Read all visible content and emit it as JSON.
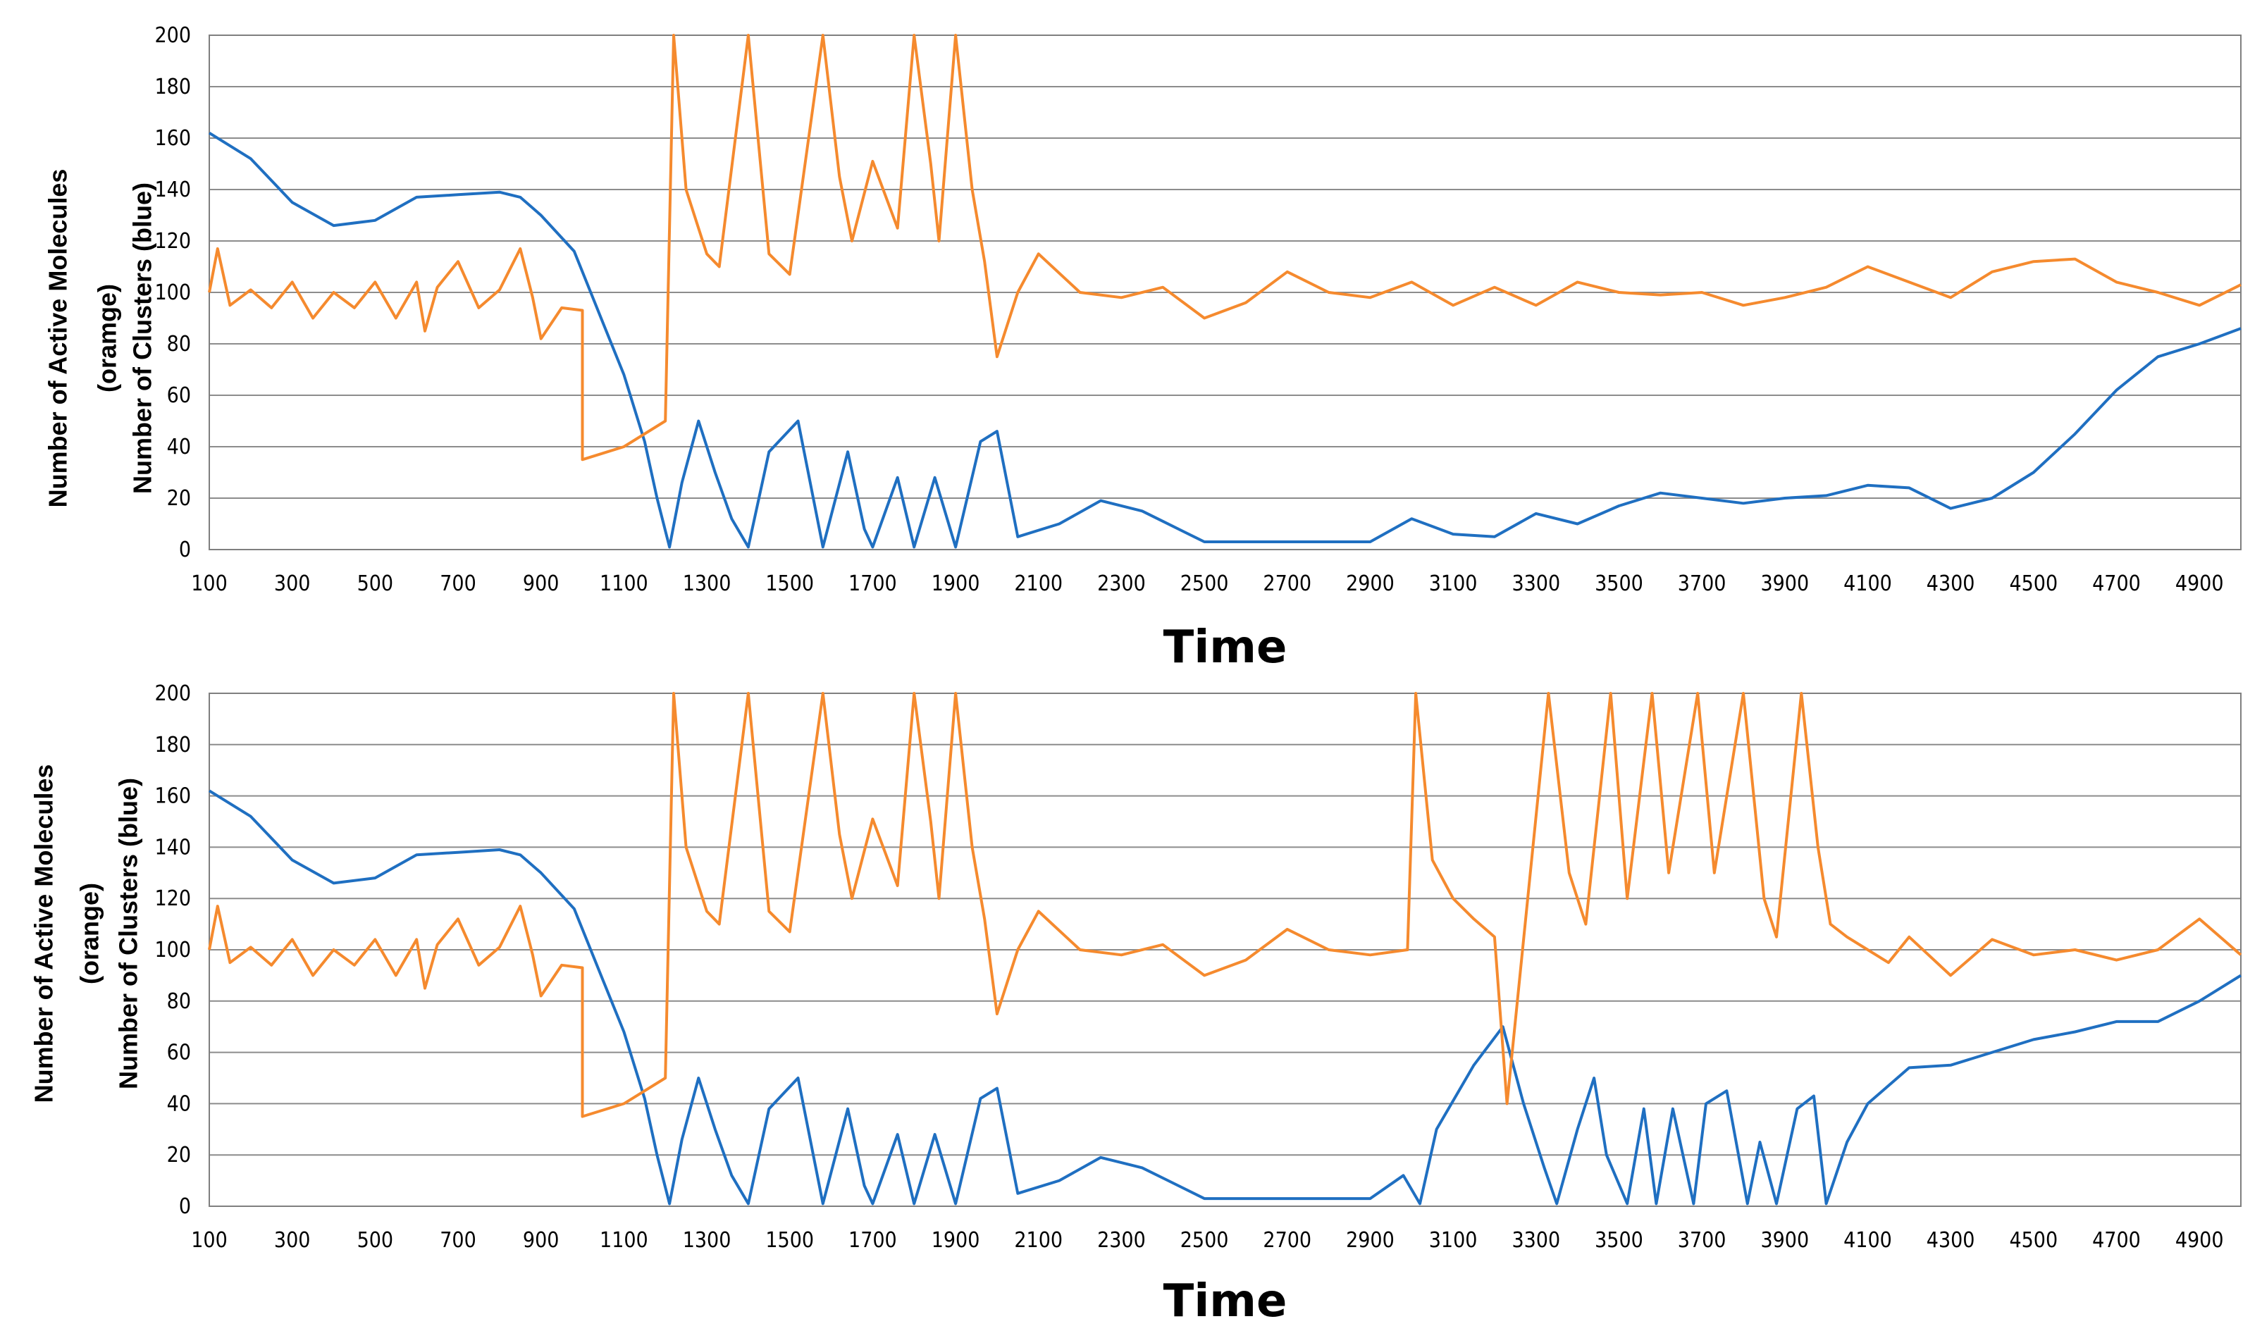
{
  "chart_data": [
    {
      "type": "line",
      "xlabel": "Time",
      "ylabel_lines": [
        "Number of Active Molecules",
        "(oramge)",
        "Number of Clusters (blue)"
      ],
      "xlim": [
        100,
        5000
      ],
      "ylim": [
        0,
        200
      ],
      "yticks": [
        0,
        20,
        40,
        60,
        80,
        100,
        120,
        140,
        160,
        180,
        200
      ],
      "xticks": [
        100,
        300,
        500,
        700,
        900,
        1100,
        1300,
        1500,
        1700,
        1900,
        2100,
        2300,
        2500,
        2700,
        2900,
        3100,
        3300,
        3500,
        3700,
        3900,
        4100,
        4300,
        4500,
        4700,
        4900
      ],
      "grid": true,
      "series": [
        {
          "name": "Number of Clusters",
          "color": "#1F6FC1",
          "x": [
            100,
            200,
            300,
            400,
            500,
            600,
            700,
            800,
            850,
            900,
            980,
            1050,
            1100,
            1150,
            1180,
            1210,
            1240,
            1280,
            1320,
            1360,
            1400,
            1450,
            1520,
            1580,
            1640,
            1680,
            1700,
            1760,
            1800,
            1850,
            1900,
            1960,
            2000,
            2050,
            2150,
            2250,
            2350,
            2450,
            2500,
            2700,
            2900,
            3000,
            3100,
            3200,
            3300,
            3400,
            3500,
            3600,
            3700,
            3800,
            3900,
            4000,
            4100,
            4200,
            4300,
            4400,
            4500,
            4600,
            4700,
            4800,
            4900,
            5000
          ],
          "values": [
            162,
            152,
            135,
            126,
            128,
            137,
            138,
            139,
            137,
            130,
            116,
            88,
            68,
            42,
            20,
            1,
            26,
            50,
            30,
            12,
            1,
            38,
            50,
            1,
            38,
            8,
            1,
            28,
            1,
            28,
            1,
            42,
            46,
            5,
            10,
            19,
            15,
            7,
            3,
            3,
            3,
            12,
            6,
            5,
            14,
            10,
            17,
            22,
            20,
            18,
            20,
            21,
            25,
            24,
            16,
            20,
            30,
            45,
            62,
            75,
            80,
            86
          ]
        },
        {
          "name": "Number of Active Molecules",
          "color": "#F58A2E",
          "x": [
            100,
            120,
            150,
            200,
            250,
            300,
            350,
            400,
            450,
            500,
            550,
            600,
            620,
            650,
            700,
            750,
            800,
            850,
            880,
            900,
            950,
            1000,
            1000,
            1100,
            1200,
            1220,
            1250,
            1300,
            1330,
            1400,
            1450,
            1500,
            1580,
            1620,
            1650,
            1700,
            1760,
            1800,
            1840,
            1860,
            1900,
            1940,
            1970,
            2000,
            2050,
            2100,
            2200,
            2300,
            2400,
            2500,
            2600,
            2700,
            2800,
            2900,
            3000,
            3100,
            3200,
            3300,
            3400,
            3500,
            3600,
            3700,
            3800,
            3900,
            4000,
            4100,
            4200,
            4300,
            4400,
            4500,
            4600,
            4700,
            4800,
            4900,
            5000
          ],
          "values": [
            100,
            117,
            95,
            101,
            94,
            104,
            90,
            100,
            94,
            104,
            90,
            104,
            85,
            102,
            112,
            94,
            101,
            117,
            98,
            82,
            94,
            93,
            35,
            40,
            50,
            200,
            140,
            115,
            110,
            200,
            115,
            107,
            200,
            145,
            120,
            151,
            125,
            200,
            150,
            120,
            200,
            140,
            112,
            75,
            100,
            115,
            100,
            98,
            102,
            90,
            96,
            108,
            100,
            98,
            104,
            95,
            102,
            95,
            104,
            100,
            99,
            100,
            95,
            98,
            102,
            110,
            104,
            98,
            108,
            112,
            113,
            104,
            100,
            95,
            103
          ]
        }
      ]
    },
    {
      "type": "line",
      "xlabel": "Time",
      "ylabel_lines": [
        "Number of Active Molecules",
        "(orange)",
        "Number of Clusters (blue)"
      ],
      "xlim": [
        100,
        5000
      ],
      "ylim": [
        0,
        200
      ],
      "yticks": [
        0,
        20,
        40,
        60,
        80,
        100,
        120,
        140,
        160,
        180,
        200
      ],
      "xticks": [
        100,
        300,
        500,
        700,
        900,
        1100,
        1300,
        1500,
        1700,
        1900,
        2100,
        2300,
        2500,
        2700,
        2900,
        3100,
        3300,
        3500,
        3700,
        3900,
        4100,
        4300,
        4500,
        4700,
        4900
      ],
      "grid": true,
      "series": [
        {
          "name": "Number of Clusters",
          "color": "#1F6FC1",
          "x": [
            100,
            200,
            300,
            400,
            500,
            600,
            700,
            800,
            850,
            900,
            980,
            1050,
            1100,
            1150,
            1180,
            1210,
            1240,
            1280,
            1320,
            1360,
            1400,
            1450,
            1520,
            1580,
            1640,
            1680,
            1700,
            1760,
            1800,
            1850,
            1900,
            1960,
            2000,
            2050,
            2150,
            2250,
            2350,
            2450,
            2500,
            2700,
            2900,
            2980,
            3020,
            3060,
            3150,
            3220,
            3270,
            3320,
            3350,
            3400,
            3440,
            3470,
            3520,
            3560,
            3590,
            3630,
            3680,
            3710,
            3760,
            3810,
            3840,
            3880,
            3930,
            3970,
            4000,
            4050,
            4100,
            4200,
            4300,
            4400,
            4500,
            4600,
            4700,
            4800,
            4900,
            5000
          ],
          "values": [
            162,
            152,
            135,
            126,
            128,
            137,
            138,
            139,
            137,
            130,
            116,
            88,
            68,
            42,
            20,
            1,
            26,
            50,
            30,
            12,
            1,
            38,
            50,
            1,
            38,
            8,
            1,
            28,
            1,
            28,
            1,
            42,
            46,
            5,
            10,
            19,
            15,
            7,
            3,
            3,
            3,
            12,
            1,
            30,
            55,
            70,
            40,
            15,
            1,
            30,
            50,
            20,
            1,
            38,
            1,
            38,
            1,
            40,
            45,
            1,
            25,
            1,
            38,
            43,
            1,
            25,
            40,
            54,
            55,
            60,
            65,
            68,
            72,
            72,
            80,
            90
          ]
        },
        {
          "name": "Number of Active Molecules",
          "color": "#F58A2E",
          "x": [
            100,
            120,
            150,
            200,
            250,
            300,
            350,
            400,
            450,
            500,
            550,
            600,
            620,
            650,
            700,
            750,
            800,
            850,
            880,
            900,
            950,
            1000,
            1000,
            1100,
            1200,
            1220,
            1250,
            1300,
            1330,
            1400,
            1450,
            1500,
            1580,
            1620,
            1650,
            1700,
            1760,
            1800,
            1840,
            1860,
            1900,
            1940,
            1970,
            2000,
            2050,
            2100,
            2200,
            2300,
            2400,
            2500,
            2600,
            2700,
            2800,
            2900,
            2990,
            3010,
            3050,
            3100,
            3150,
            3200,
            3230,
            3330,
            3380,
            3420,
            3480,
            3520,
            3580,
            3620,
            3690,
            3730,
            3800,
            3850,
            3880,
            3940,
            3980,
            4010,
            4050,
            4100,
            4150,
            4200,
            4300,
            4400,
            4500,
            4600,
            4700,
            4800,
            4900,
            5000
          ],
          "values": [
            100,
            117,
            95,
            101,
            94,
            104,
            90,
            100,
            94,
            104,
            90,
            104,
            85,
            102,
            112,
            94,
            101,
            117,
            98,
            82,
            94,
            93,
            35,
            40,
            50,
            200,
            140,
            115,
            110,
            200,
            115,
            107,
            200,
            145,
            120,
            151,
            125,
            200,
            150,
            120,
            200,
            140,
            112,
            75,
            100,
            115,
            100,
            98,
            102,
            90,
            96,
            108,
            100,
            98,
            100,
            200,
            135,
            120,
            112,
            105,
            40,
            200,
            130,
            110,
            200,
            120,
            200,
            130,
            200,
            130,
            200,
            120,
            105,
            200,
            140,
            110,
            105,
            100,
            95,
            105,
            90,
            104,
            98,
            100,
            96,
            100,
            112,
            98
          ]
        }
      ]
    }
  ]
}
